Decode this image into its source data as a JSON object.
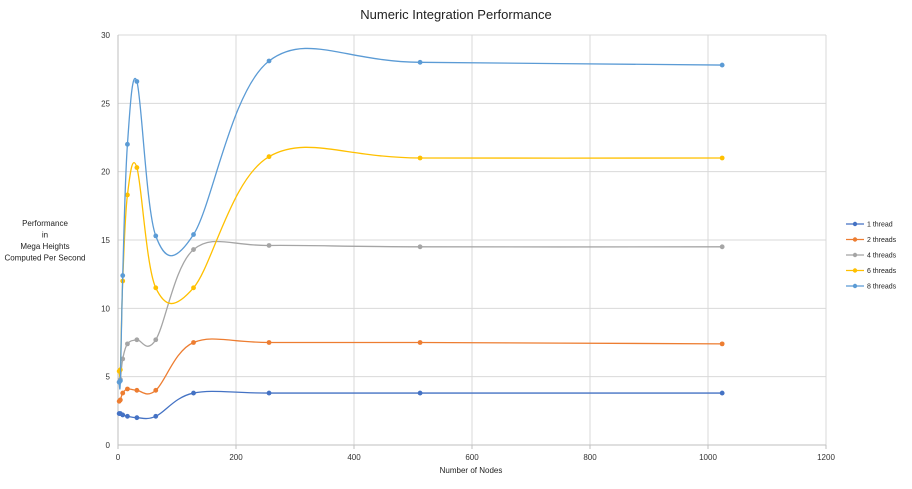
{
  "chart_data": {
    "type": "line",
    "title": "Numeric Integration Performance",
    "xlabel": "Number of Nodes",
    "ylabel_lines": [
      "Performance",
      "in",
      "Mega Heights",
      "Computed Per Second"
    ],
    "xlim": [
      0,
      1200
    ],
    "ylim": [
      0,
      30
    ],
    "xticks": [
      0,
      200,
      400,
      600,
      800,
      1000,
      1200
    ],
    "yticks": [
      0,
      5,
      10,
      15,
      20,
      25,
      30
    ],
    "grid": true,
    "legend_position": "right",
    "x": [
      2,
      4,
      8,
      16,
      32,
      64,
      128,
      256,
      512,
      1024
    ],
    "series": [
      {
        "name": "1 thread",
        "color": "#4472C4",
        "values": [
          2.3,
          2.3,
          2.2,
          2.1,
          2.0,
          2.1,
          3.8,
          3.8,
          3.8,
          3.8
        ]
      },
      {
        "name": "2 threads",
        "color": "#ED7D31",
        "values": [
          3.2,
          3.3,
          3.8,
          4.1,
          4.0,
          4.0,
          7.5,
          7.5,
          7.5,
          7.4
        ]
      },
      {
        "name": "4 threads",
        "color": "#A5A5A5",
        "values": [
          4.6,
          4.8,
          6.3,
          7.4,
          7.7,
          7.7,
          14.3,
          14.6,
          14.5,
          14.5
        ]
      },
      {
        "name": "6 threads",
        "color": "#FFC000",
        "values": [
          5.4,
          5.5,
          12.0,
          18.3,
          20.3,
          11.5,
          11.5,
          21.1,
          21.0,
          21.0
        ]
      },
      {
        "name": "8 threads",
        "color": "#5B9BD5",
        "values": [
          4.6,
          4.7,
          12.4,
          22.0,
          26.6,
          15.3,
          15.4,
          28.1,
          28.0,
          27.8
        ]
      }
    ]
  }
}
